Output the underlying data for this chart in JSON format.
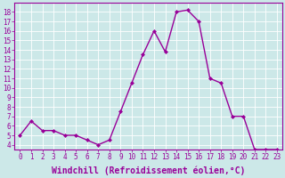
{
  "x": [
    0,
    1,
    2,
    3,
    4,
    5,
    6,
    7,
    8,
    9,
    10,
    11,
    12,
    13,
    14,
    15,
    16,
    17,
    18,
    19,
    20,
    21,
    22,
    23
  ],
  "y": [
    5.0,
    6.5,
    5.5,
    5.5,
    5.0,
    5.0,
    4.5,
    4.0,
    4.5,
    7.5,
    10.5,
    13.5,
    16.0,
    13.8,
    18.0,
    18.2,
    17.0,
    11.0,
    10.5,
    7.0,
    7.0,
    3.5,
    3.5,
    3.5
  ],
  "line_color": "#990099",
  "marker": "D",
  "markersize": 2,
  "linewidth": 1,
  "xlabel": "Windchill (Refroidissement éolien,°C)",
  "xlabel_fontsize": 7,
  "xtick_labels": [
    "0",
    "1",
    "2",
    "3",
    "4",
    "5",
    "6",
    "7",
    "8",
    "9",
    "10",
    "11",
    "12",
    "13",
    "14",
    "15",
    "16",
    "17",
    "18",
    "19",
    "20",
    "21",
    "22",
    "23"
  ],
  "ytick_values": [
    4,
    5,
    6,
    7,
    8,
    9,
    10,
    11,
    12,
    13,
    14,
    15,
    16,
    17,
    18
  ],
  "ylim": [
    3.5,
    19.0
  ],
  "xlim": [
    -0.5,
    23.5
  ],
  "bg_color": "#cce8e8",
  "grid_color": "#ffffff",
  "tick_color": "#990099",
  "tick_fontsize": 5.5,
  "spine_color": "#990099"
}
